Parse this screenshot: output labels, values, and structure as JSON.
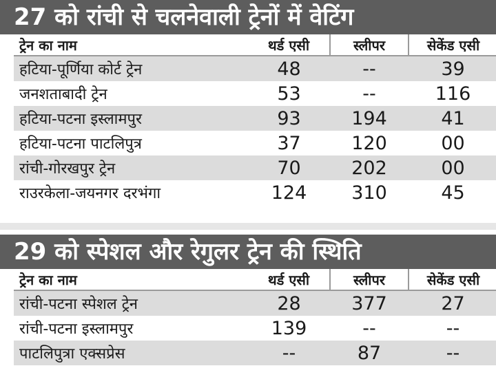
{
  "table1": {
    "title": "27 को रांची से चलनेवाली ट्रेनों में वेटिंग",
    "headers": [
      "ट्रेन का नाम",
      "थर्ड एसी",
      "स्लीपर",
      "सेकेंड एसी"
    ],
    "rows": [
      [
        "हटिया-पूर्णिया कोर्ट ट्रेन",
        "48",
        "--",
        "39"
      ],
      [
        "जनशताबादी ट्रेन",
        "53",
        "--",
        "116"
      ],
      [
        "हटिया-पटना इस्लामपुर",
        "93",
        "194",
        "41"
      ],
      [
        "हटिया-पटना पाटलिपुत्र",
        "37",
        "120",
        "00"
      ],
      [
        "रांची-गोरखपुर ट्रेन",
        "70",
        "202",
        "00"
      ],
      [
        "राउरकेला-जयनगर दरभंगा",
        "124",
        "310",
        "45"
      ]
    ]
  },
  "table2": {
    "title": "29 को स्पेशल और रेगुलर ट्रेन की स्थिति",
    "headers": [
      "ट्रेन का नाम",
      "थर्ड एसी",
      "स्लीपर",
      "सेकेंड एसी"
    ],
    "rows": [
      [
        "रांची-पटना स्पेशल ट्रेन",
        "28",
        "377",
        "27"
      ],
      [
        "रांची-पटना इस्लामपुर",
        "139",
        "--",
        "--"
      ],
      [
        "पाटलिपुत्रा एक्सप्रेस",
        "--",
        "87",
        "--"
      ]
    ]
  },
  "colors": {
    "banner": "#5d5d5d",
    "row_shade": "#dcdcdc"
  }
}
